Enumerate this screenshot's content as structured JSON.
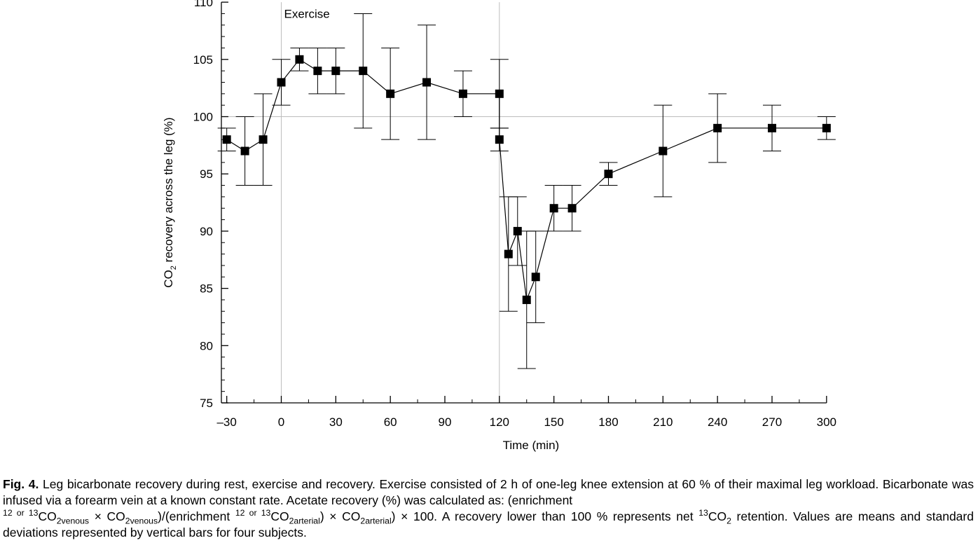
{
  "chart_data": {
    "type": "line",
    "xlabel": "Time (min)",
    "ylabel": {
      "pre": "CO",
      "sub": "2",
      "post": " recovery across the leg (%)"
    },
    "xlim": [
      -35,
      300
    ],
    "ylim": [
      75,
      110
    ],
    "xticks": [
      -30,
      0,
      30,
      60,
      90,
      120,
      150,
      180,
      210,
      240,
      270,
      300
    ],
    "xtick_labels": [
      "–30",
      "0",
      "30",
      "60",
      "90",
      "120",
      "150",
      "180",
      "210",
      "240",
      "270",
      "300"
    ],
    "yticks": [
      75,
      80,
      85,
      90,
      95,
      100,
      105,
      110
    ],
    "ytick_labels": [
      "75",
      "80",
      "85",
      "90",
      "95",
      "100",
      "105",
      "110"
    ],
    "reference_lines": {
      "vertical": [
        0,
        120
      ],
      "horizontal": [
        100
      ]
    },
    "annotation": {
      "text": "Exercise",
      "x": 0,
      "y": 109
    },
    "grid": false,
    "marker": "filled-square",
    "series": [
      {
        "x": [
          -30,
          -20,
          -10,
          0,
          10,
          20,
          30,
          45,
          60,
          80,
          100,
          120,
          120,
          125,
          130,
          135,
          140,
          150,
          160,
          180,
          210,
          240,
          270,
          300
        ],
        "y": [
          98,
          97,
          98,
          103,
          105,
          104,
          104,
          104,
          102,
          103,
          102,
          102,
          98,
          88,
          90,
          84,
          86,
          92,
          92,
          95,
          97,
          99,
          99,
          99
        ],
        "err": [
          1,
          3,
          4,
          2,
          1,
          2,
          2,
          5,
          4,
          5,
          2,
          3,
          1,
          5,
          3,
          6,
          4,
          2,
          2,
          1,
          4,
          3,
          2,
          1
        ]
      }
    ]
  },
  "caption": {
    "label": "Fig. 4.",
    "text_1": "Leg bicarbonate recovery during rest, exercise and recovery. Exercise consisted of 2 h of one-leg knee extension at 60 % of their maximal leg workload. Bicarbonate was infused via a forearm vein at a known constant rate. Acetate recovery (%) was calculated as: (enrichment",
    "sup_1": "12 or 13",
    "co2_venous": "CO",
    "sub_venous": "2venous",
    "times_1": " × CO",
    "sub_venous_2": "2venous",
    "text_2": ")/(enrichment ",
    "sup_2": "12 or 13",
    "co2_arterial": "CO",
    "sub_arterial": "2arterial",
    "times_2": ") × CO",
    "sub_arterial_2": "2arterial",
    "text_3": ") × 100. A recovery lower than 100 % represents net ",
    "sup_3": "13",
    "co2_ret": "CO",
    "sub_ret": "2",
    "text_4": " retention. Values are means and standard deviations represented by vertical bars for four subjects."
  }
}
